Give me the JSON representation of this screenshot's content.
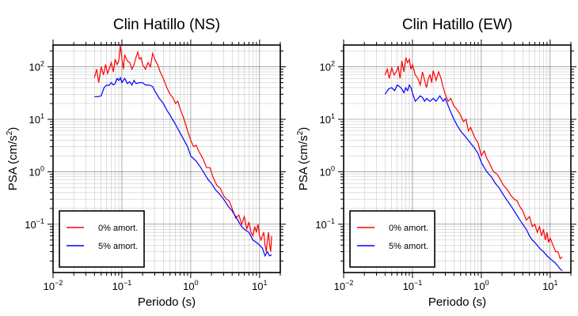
{
  "chart_data": [
    {
      "type": "line",
      "title": "Clin Hatillo (NS)",
      "xlabel": "Periodo (s)",
      "ylabel_main": "PSA (cm/s",
      "ylabel_sup": "2",
      "ylabel_tail": ")",
      "xscale": "log",
      "yscale": "log",
      "xlim": [
        0.01,
        20
      ],
      "ylim": [
        0.012,
        260
      ],
      "xticks": [
        {
          "value": 0.01,
          "base": "10",
          "exp": "−2"
        },
        {
          "value": 0.1,
          "base": "10",
          "exp": "−1"
        },
        {
          "value": 1,
          "base": "10",
          "exp": "0"
        },
        {
          "value": 10,
          "base": "10",
          "exp": "1"
        }
      ],
      "yticks": [
        {
          "value": 0.1,
          "base": "10",
          "exp": "−1"
        },
        {
          "value": 1,
          "base": "10",
          "exp": "0"
        },
        {
          "value": 10,
          "base": "10",
          "exp": "1"
        },
        {
          "value": 100,
          "base": "10",
          "exp": "2"
        }
      ],
      "grid": true,
      "legend_position": "bottom-left",
      "series": [
        {
          "name": "0% amort.",
          "color": "#ff0000",
          "x": [
            0.04,
            0.043,
            0.046,
            0.05,
            0.054,
            0.058,
            0.062,
            0.066,
            0.07,
            0.075,
            0.08,
            0.085,
            0.09,
            0.095,
            0.1,
            0.105,
            0.11,
            0.12,
            0.13,
            0.14,
            0.15,
            0.16,
            0.17,
            0.18,
            0.19,
            0.2,
            0.22,
            0.24,
            0.26,
            0.28,
            0.3,
            0.33,
            0.36,
            0.4,
            0.45,
            0.5,
            0.55,
            0.6,
            0.65,
            0.7,
            0.8,
            0.9,
            1.0,
            1.1,
            1.2,
            1.3,
            1.5,
            1.7,
            1.9,
            2.1,
            2.4,
            2.7,
            3.0,
            3.3,
            3.6,
            4.0,
            4.5,
            5.0,
            5.5,
            6.0,
            6.5,
            7.0,
            7.5,
            8.0,
            8.5,
            9.0,
            9.5,
            10,
            10.5,
            11,
            11.5,
            12,
            12.5,
            13,
            13.5,
            14,
            14.5,
            15
          ],
          "y": [
            62,
            90,
            50,
            100,
            70,
            110,
            75,
            95,
            120,
            80,
            140,
            110,
            130,
            250,
            150,
            90,
            170,
            130,
            120,
            90,
            110,
            150,
            190,
            140,
            150,
            110,
            90,
            120,
            100,
            180,
            140,
            110,
            80,
            60,
            40,
            30,
            26,
            20,
            22,
            16,
            10,
            6,
            4,
            3,
            3.2,
            2.5,
            1.8,
            1.2,
            1.2,
            0.8,
            0.55,
            0.48,
            0.35,
            0.3,
            0.28,
            0.2,
            0.13,
            0.15,
            0.1,
            0.14,
            0.08,
            0.11,
            0.07,
            0.06,
            0.09,
            0.07,
            0.1,
            0.06,
            0.05,
            0.06,
            0.07,
            0.04,
            0.03,
            0.05,
            0.07,
            0.04,
            0.03,
            0.06
          ]
        },
        {
          "name": "5% amort.",
          "color": "#0000ff",
          "x": [
            0.04,
            0.045,
            0.05,
            0.055,
            0.06,
            0.065,
            0.07,
            0.075,
            0.08,
            0.085,
            0.09,
            0.095,
            0.1,
            0.11,
            0.12,
            0.13,
            0.14,
            0.15,
            0.16,
            0.18,
            0.2,
            0.22,
            0.25,
            0.28,
            0.3,
            0.35,
            0.4,
            0.45,
            0.5,
            0.6,
            0.7,
            0.8,
            0.9,
            1.0,
            1.2,
            1.4,
            1.6,
            1.8,
            2.0,
            2.3,
            2.6,
            3.0,
            3.5,
            4.0,
            4.5,
            5.0,
            5.5,
            6.0,
            7.0,
            8.0,
            9.0,
            10,
            11,
            12,
            13,
            14,
            15
          ],
          "y": [
            27,
            27,
            28,
            40,
            45,
            44,
            50,
            45,
            48,
            60,
            55,
            62,
            50,
            60,
            48,
            52,
            45,
            55,
            48,
            50,
            50,
            45,
            45,
            42,
            35,
            25,
            20,
            15,
            12,
            8,
            5.5,
            4,
            3,
            2,
            1.6,
            1.2,
            0.9,
            0.7,
            0.6,
            0.45,
            0.38,
            0.3,
            0.22,
            0.18,
            0.14,
            0.11,
            0.09,
            0.08,
            0.07,
            0.05,
            0.045,
            0.04,
            0.035,
            0.025,
            0.03,
            0.025,
            0.026
          ]
        }
      ]
    },
    {
      "type": "line",
      "title": "Clin Hatillo (EW)",
      "xlabel": "Periodo (s)",
      "ylabel_main": "PSA (cm/s",
      "ylabel_sup": "2",
      "ylabel_tail": ")",
      "xscale": "log",
      "yscale": "log",
      "xlim": [
        0.01,
        20
      ],
      "ylim": [
        0.012,
        260
      ],
      "xticks": [
        {
          "value": 0.01,
          "base": "10",
          "exp": "−2"
        },
        {
          "value": 0.1,
          "base": "10",
          "exp": "−1"
        },
        {
          "value": 1,
          "base": "10",
          "exp": "0"
        },
        {
          "value": 10,
          "base": "10",
          "exp": "1"
        }
      ],
      "yticks": [
        {
          "value": 0.1,
          "base": "10",
          "exp": "−1"
        },
        {
          "value": 1,
          "base": "10",
          "exp": "0"
        },
        {
          "value": 10,
          "base": "10",
          "exp": "1"
        },
        {
          "value": 100,
          "base": "10",
          "exp": "2"
        }
      ],
      "grid": true,
      "legend_position": "bottom-left",
      "series": [
        {
          "name": "0% amort.",
          "color": "#ff0000",
          "x": [
            0.04,
            0.043,
            0.046,
            0.05,
            0.054,
            0.058,
            0.062,
            0.066,
            0.07,
            0.075,
            0.08,
            0.085,
            0.09,
            0.095,
            0.1,
            0.11,
            0.12,
            0.13,
            0.14,
            0.15,
            0.16,
            0.17,
            0.18,
            0.19,
            0.2,
            0.22,
            0.24,
            0.26,
            0.28,
            0.3,
            0.33,
            0.36,
            0.4,
            0.45,
            0.5,
            0.55,
            0.6,
            0.65,
            0.7,
            0.8,
            0.9,
            1.0,
            1.1,
            1.2,
            1.3,
            1.5,
            1.7,
            1.9,
            2.1,
            2.4,
            2.7,
            3.0,
            3.3,
            3.6,
            4.0,
            4.5,
            5.0,
            5.5,
            6.0,
            6.5,
            7.0,
            7.5,
            8.0,
            8.5,
            9.0,
            9.5,
            10,
            11,
            12,
            13,
            14,
            15
          ],
          "y": [
            70,
            90,
            60,
            95,
            70,
            80,
            100,
            60,
            130,
            80,
            150,
            120,
            140,
            90,
            110,
            70,
            60,
            45,
            80,
            55,
            40,
            60,
            70,
            50,
            85,
            55,
            80,
            60,
            40,
            30,
            22,
            25,
            18,
            15,
            12,
            9,
            10,
            6,
            7,
            4.5,
            3.5,
            2.0,
            2.5,
            1.8,
            1.5,
            1.0,
            0.9,
            0.7,
            0.55,
            0.45,
            0.35,
            0.3,
            0.28,
            0.22,
            0.18,
            0.12,
            0.14,
            0.09,
            0.1,
            0.07,
            0.09,
            0.06,
            0.08,
            0.05,
            0.07,
            0.045,
            0.055,
            0.04,
            0.03,
            0.03,
            0.022,
            0.024
          ]
        },
        {
          "name": "5% amort.",
          "color": "#0000ff",
          "x": [
            0.04,
            0.045,
            0.05,
            0.055,
            0.06,
            0.065,
            0.07,
            0.075,
            0.08,
            0.085,
            0.09,
            0.095,
            0.1,
            0.11,
            0.12,
            0.13,
            0.14,
            0.15,
            0.16,
            0.18,
            0.2,
            0.22,
            0.25,
            0.28,
            0.3,
            0.35,
            0.4,
            0.45,
            0.5,
            0.6,
            0.7,
            0.8,
            0.9,
            1.0,
            1.2,
            1.4,
            1.6,
            1.8,
            2.0,
            2.3,
            2.6,
            3.0,
            3.5,
            4.0,
            4.5,
            5.0,
            5.5,
            6.0,
            7.0,
            8.0,
            9.0,
            10,
            11,
            12,
            13,
            14,
            15
          ],
          "y": [
            30,
            38,
            40,
            35,
            45,
            42,
            38,
            32,
            40,
            35,
            45,
            40,
            32,
            22,
            25,
            28,
            26,
            22,
            25,
            22,
            25,
            22,
            28,
            22,
            25,
            15,
            10,
            7.5,
            6,
            4.5,
            3.5,
            2.8,
            2.2,
            1.5,
            1.0,
            0.8,
            0.6,
            0.5,
            0.4,
            0.3,
            0.24,
            0.18,
            0.13,
            0.1,
            0.08,
            0.06,
            0.05,
            0.045,
            0.035,
            0.03,
            0.025,
            0.022,
            0.02,
            0.018,
            0.016,
            0.014,
            0.013
          ]
        }
      ]
    }
  ]
}
